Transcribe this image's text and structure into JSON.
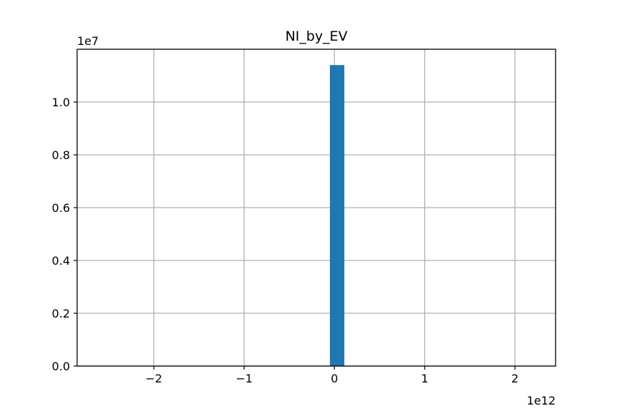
{
  "chart_data": {
    "type": "bar",
    "title": "NI_by_EV",
    "xlabel": "",
    "ylabel": "",
    "x_offset_label": "1e12",
    "y_offset_label": "1e7",
    "x_scale": 1000000000000.0,
    "y_scale": 10000000.0,
    "xlim": [
      -2.85,
      2.45
    ],
    "ylim": [
      0,
      1.2
    ],
    "xticks": [
      -2,
      -1,
      0,
      1,
      2
    ],
    "xtick_labels": [
      "−2",
      "−1",
      "0",
      "1",
      "2"
    ],
    "yticks": [
      0.0,
      0.2,
      0.4,
      0.6,
      0.8,
      1.0
    ],
    "ytick_labels": [
      "0.0",
      "0.2",
      "0.4",
      "0.6",
      "0.8",
      "1.0"
    ],
    "grid": true,
    "bars": [
      {
        "x0": -0.05,
        "x1": 0.11,
        "value": 1.14
      }
    ],
    "colors": {
      "bar": "#1f77b4",
      "grid": "#b0b0b0",
      "axes": "#000000"
    }
  }
}
